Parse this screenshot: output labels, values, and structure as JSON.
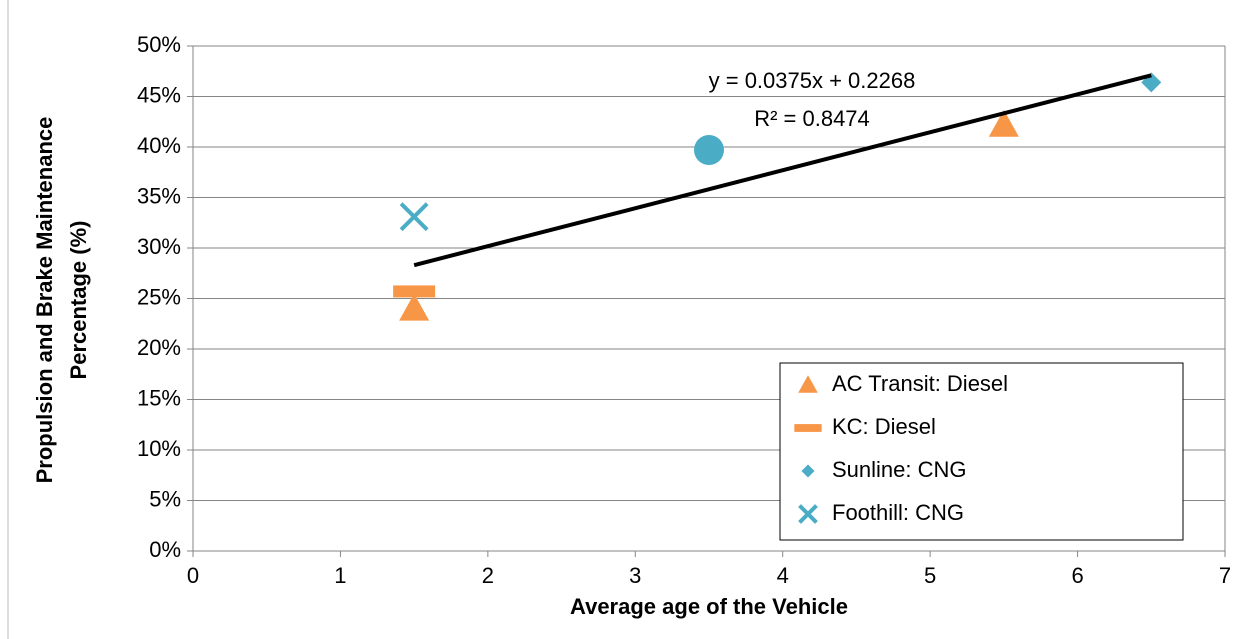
{
  "chart_data": {
    "type": "scatter",
    "x_label": "Average age of the Vehicle",
    "y_label": [
      "Propulsion and Brake Maintenance",
      "Percentage (%)"
    ],
    "xlim": [
      0,
      7
    ],
    "xticks": [
      0,
      1,
      2,
      3,
      4,
      5,
      6,
      7
    ],
    "ylim": [
      0,
      50
    ],
    "yticks": [
      {
        "value": 0,
        "label": "0%"
      },
      {
        "value": 5,
        "label": "5%"
      },
      {
        "value": 10,
        "label": "10%"
      },
      {
        "value": 15,
        "label": "15%"
      },
      {
        "value": 20,
        "label": "20%"
      },
      {
        "value": 25,
        "label": "25%"
      },
      {
        "value": 30,
        "label": "30%"
      },
      {
        "value": 35,
        "label": "35%"
      },
      {
        "value": 40,
        "label": "40%"
      },
      {
        "value": 45,
        "label": "45%"
      },
      {
        "value": 50,
        "label": "50%"
      }
    ],
    "grid": true,
    "legend": "lower right",
    "series": [
      {
        "name": "AC Transit: Diesel",
        "color": "#f79646",
        "marker": "triangle",
        "x": [
          1.5,
          5.5
        ],
        "values": [
          24,
          42.2
        ]
      },
      {
        "name": "KC: Diesel",
        "color": "#f79646",
        "marker": "dash",
        "x": [
          1.5
        ],
        "values": [
          25.7
        ]
      },
      {
        "name": "Sunline: CNG",
        "color": "#4bacc6",
        "marker": "diamond",
        "x": [
          6.5
        ],
        "values": [
          46.4
        ]
      },
      {
        "name": "Foothill: CNG",
        "color": "#4bacc6",
        "marker": "x",
        "x": [
          1.5
        ],
        "values": [
          33.1
        ]
      },
      {
        "color": "#4bacc6",
        "marker": "circle",
        "x": [
          3.5
        ],
        "values": [
          39.7
        ]
      }
    ],
    "trendline": {
      "equation": "y = 0.0375x + 0.2268",
      "r2": "R² = 0.8474",
      "color": "#000000",
      "x": [
        1.5,
        6.5
      ],
      "values": [
        28.3,
        47.1
      ]
    }
  }
}
